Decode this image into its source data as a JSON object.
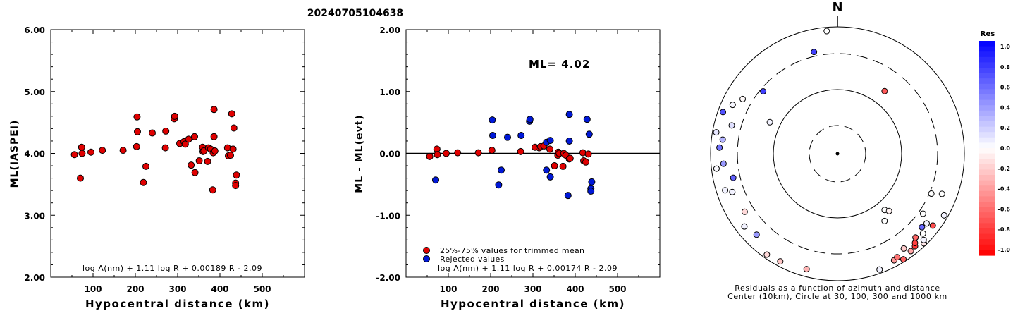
{
  "figure": {
    "title": "20240705104638"
  },
  "chart_data": [
    {
      "type": "scatter",
      "panel": "ml-vs-distance",
      "xlabel": "Hypocentral distance (km)",
      "ylabel": "ML(IASPEI)",
      "xlim": [
        0,
        600
      ],
      "ylim": [
        2.0,
        6.0
      ],
      "xticks": [
        "100",
        "200",
        "300",
        "400",
        "500"
      ],
      "yticks": [
        "2.00",
        "3.00",
        "4.00",
        "5.00",
        "6.00"
      ],
      "formula": "log A(nm) + 1.11 log R + 0.00189 R - 2.09",
      "series": [
        {
          "color": "#e00000",
          "points": [
            [
              56,
              3.98
            ],
            [
              70,
              3.6
            ],
            [
              73,
              4.1
            ],
            [
              74,
              4.0
            ],
            [
              95,
              4.02
            ],
            [
              122,
              4.05
            ],
            [
              171,
              4.05
            ],
            [
              203,
              4.11
            ],
            [
              204,
              4.59
            ],
            [
              205,
              4.35
            ],
            [
              219,
              3.53
            ],
            [
              225,
              3.79
            ],
            [
              240,
              4.33
            ],
            [
              271,
              4.09
            ],
            [
              272,
              4.36
            ],
            [
              292,
              4.56
            ],
            [
              293,
              4.6
            ],
            [
              305,
              4.16
            ],
            [
              315,
              4.19
            ],
            [
              318,
              4.15
            ],
            [
              326,
              4.23
            ],
            [
              332,
              3.81
            ],
            [
              340,
              4.27
            ],
            [
              341,
              3.69
            ],
            [
              351,
              3.88
            ],
            [
              359,
              4.1
            ],
            [
              360,
              4.03
            ],
            [
              362,
              4.04
            ],
            [
              371,
              3.87
            ],
            [
              373,
              4.09
            ],
            [
              378,
              4.07
            ],
            [
              383,
              3.41
            ],
            [
              384,
              4.01
            ],
            [
              386,
              4.27
            ],
            [
              386,
              4.71
            ],
            [
              388,
              4.04
            ],
            [
              418,
              4.09
            ],
            [
              420,
              3.96
            ],
            [
              425,
              3.97
            ],
            [
              428,
              4.64
            ],
            [
              431,
              4.07
            ],
            [
              433,
              4.41
            ],
            [
              437,
              3.52
            ],
            [
              437,
              3.48
            ],
            [
              439,
              3.65
            ]
          ]
        }
      ]
    },
    {
      "type": "scatter",
      "panel": "residual-vs-distance",
      "xlabel": "Hypocentral distance (km)",
      "ylabel": "ML - ML(evt)",
      "xlim": [
        0,
        600
      ],
      "ylim": [
        -2.0,
        2.0
      ],
      "xticks": [
        "100",
        "200",
        "300",
        "400",
        "500"
      ],
      "yticks": [
        "-2.00",
        "-1.00",
        "0.00",
        "1.00",
        "2.00"
      ],
      "annotation": "ML= 4.02",
      "formula": "log A(nm) + 1.11 log R + 0.00174 R - 2.09",
      "legend": [
        {
          "label": "25%-75% values for trimmed mean",
          "color": "#e00000"
        },
        {
          "label": "Rejected values",
          "color": "#0018d8"
        }
      ],
      "series": [
        {
          "name": "25%-75% values for trimmed mean",
          "color": "#e00000",
          "points": [
            [
              56,
              -0.05
            ],
            [
              73,
              0.07
            ],
            [
              74,
              -0.02
            ],
            [
              95,
              0.0
            ],
            [
              122,
              0.01
            ],
            [
              171,
              0.01
            ],
            [
              203,
              0.05
            ],
            [
              271,
              0.03
            ],
            [
              305,
              0.1
            ],
            [
              315,
              0.09
            ],
            [
              318,
              0.11
            ],
            [
              326,
              0.12
            ],
            [
              340,
              0.07
            ],
            [
              351,
              -0.2
            ],
            [
              359,
              -0.03
            ],
            [
              360,
              0.02
            ],
            [
              362,
              0.0
            ],
            [
              371,
              -0.21
            ],
            [
              373,
              0.0
            ],
            [
              378,
              -0.03
            ],
            [
              386,
              -0.09
            ],
            [
              388,
              -0.08
            ],
            [
              418,
              0.01
            ],
            [
              420,
              -0.12
            ],
            [
              425,
              -0.14
            ],
            [
              431,
              -0.01
            ]
          ]
        },
        {
          "name": "Rejected values",
          "color": "#0018d8",
          "points": [
            [
              70,
              -0.43
            ],
            [
              204,
              0.54
            ],
            [
              205,
              0.29
            ],
            [
              219,
              -0.51
            ],
            [
              225,
              -0.27
            ],
            [
              240,
              0.26
            ],
            [
              272,
              0.29
            ],
            [
              292,
              0.52
            ],
            [
              293,
              0.55
            ],
            [
              332,
              -0.27
            ],
            [
              341,
              -0.38
            ],
            [
              383,
              -0.68
            ],
            [
              386,
              0.63
            ],
            [
              428,
              0.55
            ],
            [
              433,
              0.31
            ],
            [
              437,
              -0.57
            ],
            [
              437,
              -0.61
            ],
            [
              439,
              -0.46
            ],
            [
              332,
              0.18
            ],
            [
              341,
              0.21
            ],
            [
              386,
              0.2
            ]
          ]
        }
      ]
    },
    {
      "type": "scatter",
      "panel": "azimuth-distance-polar",
      "north_label": "N",
      "caption_line1": "Residuals as a function of azimuth and distance",
      "caption_line2": "Center (10km), Circle at 30, 100, 300 and 1000 km",
      "rings": [
        {
          "label": "30",
          "style": "dashed"
        },
        {
          "label": "100",
          "style": "solid"
        },
        {
          "label": "300",
          "style": "dashed"
        },
        {
          "label": "1000",
          "style": "solid"
        }
      ],
      "stations": [
        [
          355,
          0.99,
          0.0
        ],
        [
          347,
          0.84,
          0.75
        ],
        [
          310,
          0.78,
          0.75
        ],
        [
          37,
          0.63,
          -0.65
        ],
        [
          300,
          0.88,
          -0.02
        ],
        [
          295,
          0.93,
          0.03
        ],
        [
          290,
          0.98,
          0.68
        ],
        [
          285,
          0.88,
          0.12
        ],
        [
          280,
          0.99,
          0.1
        ],
        [
          277,
          0.93,
          0.3
        ],
        [
          273,
          0.95,
          0.55
        ],
        [
          265,
          0.92,
          0.4
        ],
        [
          263,
          0.98,
          0.02
        ],
        [
          257,
          0.86,
          0.62
        ],
        [
          252,
          0.95,
          0.05
        ],
        [
          250,
          0.9,
          0.05
        ],
        [
          238,
          0.88,
          -0.15
        ],
        [
          232,
          0.95,
          0.05
        ],
        [
          225,
          0.92,
          0.4
        ],
        [
          215,
          0.99,
          -0.15
        ],
        [
          208,
          0.98,
          -0.22
        ],
        [
          195,
          0.96,
          -0.3
        ],
        [
          295,
          0.6,
          0.05
        ],
        [
          160,
          0.99,
          0.05
        ],
        [
          152,
          0.97,
          -0.4
        ],
        [
          150,
          0.96,
          -0.55
        ],
        [
          148,
          1.0,
          -0.62
        ],
        [
          145,
          0.93,
          -0.2
        ],
        [
          143,
          0.98,
          -0.35
        ],
        [
          140,
          0.97,
          -0.8
        ],
        [
          139,
          0.95,
          -0.75
        ],
        [
          137,
          0.92,
          -0.6
        ],
        [
          136,
          1.0,
          -0.1
        ],
        [
          135,
          0.98,
          0.05
        ],
        [
          133,
          0.94,
          0.0
        ],
        [
          131,
          0.9,
          0.6
        ],
        [
          128,
          0.91,
          0.05
        ],
        [
          125,
          0.84,
          0.0
        ],
        [
          127,
          0.96,
          -0.7
        ],
        [
          120,
          0.99,
          0.05
        ],
        [
          145,
          0.66,
          0.0
        ],
        [
          140,
          0.59,
          0.0
        ],
        [
          138,
          0.62,
          -0.05
        ],
        [
          113,
          0.82,
          0.0
        ],
        [
          111,
          0.9,
          0.0
        ]
      ]
    },
    {
      "type": "heatmap",
      "panel": "residual-colorbar",
      "title": "Res",
      "ticks": [
        "1.0",
        "0.8",
        "0.6",
        "0.4",
        "0.2",
        "0.0",
        "-0.2",
        "-0.4",
        "-0.6",
        "-0.8",
        "-1.0"
      ],
      "range": [
        -1.0,
        1.0
      ],
      "colors": {
        "negative": "#ff0000",
        "zero": "#ffffff",
        "positive": "#0000ff"
      }
    }
  ]
}
